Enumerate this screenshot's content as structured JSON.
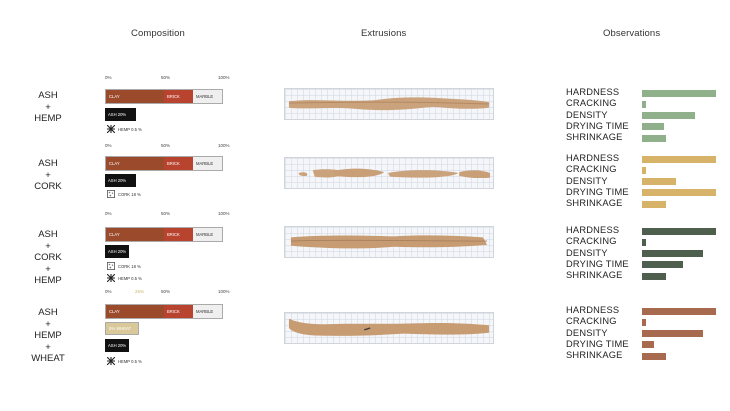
{
  "headers": {
    "composition": "Composition",
    "extrusions": "Extrusions",
    "observations": "Observations"
  },
  "ticks": {
    "t0": "0%",
    "t50": "50%",
    "t100": "100%",
    "t25": "25%"
  },
  "colors": {
    "clay": "#9b4a2c",
    "brick": "#b8432e",
    "marble": "#efefef",
    "ash": "#111111",
    "wheat": "#d9c899",
    "sample_colors": [
      "#8fb08a",
      "#d7b36a",
      "#4f5f4e",
      "#a86a4e"
    ]
  },
  "segments": {
    "clay": "CLAY",
    "brick": "BRICK",
    "marble": "MARBLE"
  },
  "samples": [
    {
      "label": [
        "ASH",
        "+",
        "HEMP"
      ],
      "chips": [
        {
          "text": "ASH 20%"
        }
      ],
      "legends": [
        {
          "icon": "hemp-icon",
          "text": "HEMP 0.5 %"
        }
      ],
      "observations": {
        "hardness": 1.0,
        "cracking": 0.06,
        "density": 0.72,
        "drying_time": 0.3,
        "shrinkage": 0.32
      }
    },
    {
      "label": [
        "ASH",
        "+",
        "CORK"
      ],
      "chips": [
        {
          "text": "ASH 20%"
        }
      ],
      "legends": [
        {
          "icon": "cork-icon",
          "text": "CORK 18 %"
        }
      ],
      "observations": {
        "hardness": 1.0,
        "cracking": 0.06,
        "density": 0.46,
        "drying_time": 1.0,
        "shrinkage": 0.32
      }
    },
    {
      "label": [
        "ASH",
        "+",
        "CORK",
        "+",
        "HEMP"
      ],
      "chips": [
        {
          "text": "ASH 20%"
        }
      ],
      "legends": [
        {
          "icon": "cork-icon",
          "text": "CORK 18 %"
        },
        {
          "icon": "hemp-icon",
          "text": "HEMP 0.5 %"
        }
      ],
      "observations": {
        "hardness": 1.0,
        "cracking": 0.06,
        "density": 0.82,
        "drying_time": 0.56,
        "shrinkage": 0.32
      }
    },
    {
      "label": [
        "ASH",
        "+",
        "HEMP",
        "+",
        "WHEAT"
      ],
      "chips": [
        {
          "text": "5% WHEAT",
          "wheat": true
        },
        {
          "text": "ASH 20%"
        }
      ],
      "legends": [
        {
          "icon": "hemp-icon",
          "text": "HEMP 0.5 %"
        }
      ],
      "observations": {
        "hardness": 1.0,
        "cracking": 0.06,
        "density": 0.82,
        "drying_time": 0.16,
        "shrinkage": 0.32
      }
    }
  ],
  "observation_labels": {
    "hardness": "HARDNESS",
    "cracking": "CRACKING",
    "density": "DENSITY",
    "drying_time": "DRYING TIME",
    "shrinkage": "SHRINKAGE"
  }
}
